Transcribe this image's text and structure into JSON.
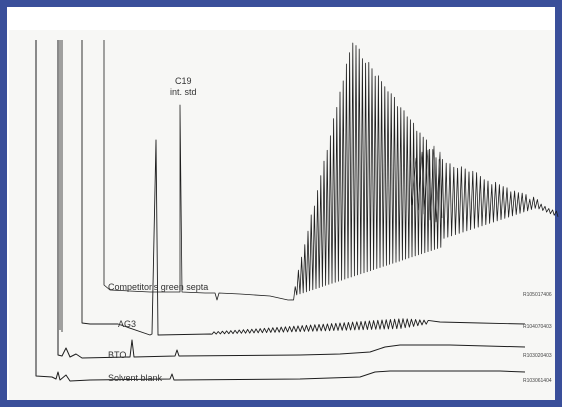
{
  "chart_data": {
    "type": "line",
    "title": "",
    "xlabel": "",
    "ylabel": "",
    "grid": false,
    "traces": [
      {
        "name": "Competitor's green septa",
        "code": "R105017406"
      },
      {
        "name": "AG3",
        "code": "R104070403"
      },
      {
        "name": "BTO",
        "code": "R103020403"
      },
      {
        "name": "Solvent blank",
        "code": "R103061404"
      }
    ],
    "annotations": [
      {
        "text": "C19",
        "subtext": "int. std"
      }
    ]
  },
  "colors": {
    "frame": "#3a4f9a",
    "trace": "#1e1e1e",
    "background": "#f7f7f5"
  }
}
